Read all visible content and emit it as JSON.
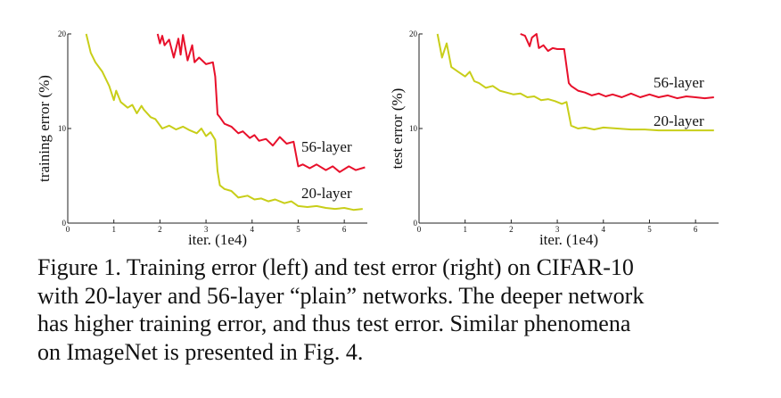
{
  "chart_data": [
    {
      "type": "line",
      "ylabel": "training error (%)",
      "xlabel": "iter. (1e4)",
      "xlim": [
        0,
        6.5
      ],
      "ylim": [
        0,
        20
      ],
      "x_ticks": [
        "0",
        "1",
        "2",
        "3",
        "4",
        "5",
        "6"
      ],
      "y_ticks": [
        "0",
        "10",
        "20"
      ],
      "grid": false,
      "series": [
        {
          "name": "56-layer",
          "color": "#e8102b",
          "x": [
            1.95,
            2.0,
            2.05,
            2.1,
            2.2,
            2.3,
            2.4,
            2.45,
            2.5,
            2.6,
            2.7,
            2.75,
            2.85,
            3.0,
            3.15,
            3.2,
            3.25,
            3.3,
            3.4,
            3.55,
            3.7,
            3.8,
            3.95,
            4.05,
            4.15,
            4.3,
            4.45,
            4.6,
            4.75,
            4.9,
            5.0,
            5.1,
            5.25,
            5.4,
            5.6,
            5.75,
            5.9,
            6.1,
            6.25,
            6.45
          ],
          "y": [
            20,
            19.0,
            19.8,
            18.8,
            19.4,
            17.5,
            19.5,
            17.8,
            19.9,
            17.2,
            18.8,
            17.0,
            17.5,
            16.8,
            17.0,
            15.5,
            11.5,
            11.2,
            10.5,
            10.2,
            9.5,
            9.7,
            9.0,
            9.3,
            8.7,
            8.9,
            8.2,
            9.1,
            8.4,
            8.6,
            6.0,
            6.2,
            5.8,
            6.2,
            5.6,
            6.0,
            5.4,
            6.0,
            5.6,
            5.9
          ]
        },
        {
          "name": "20-layer",
          "color": "#c8ce19",
          "x": [
            0.4,
            0.5,
            0.6,
            0.75,
            0.9,
            1.0,
            1.05,
            1.15,
            1.3,
            1.4,
            1.5,
            1.6,
            1.65,
            1.8,
            1.9,
            2.05,
            2.2,
            2.35,
            2.5,
            2.65,
            2.8,
            2.9,
            3.0,
            3.1,
            3.2,
            3.25,
            3.3,
            3.4,
            3.55,
            3.7,
            3.9,
            4.05,
            4.2,
            4.35,
            4.5,
            4.7,
            4.85,
            5.0,
            5.2,
            5.4,
            5.6,
            5.8,
            6.0,
            6.2,
            6.4
          ],
          "y": [
            20,
            18.0,
            17.0,
            16.0,
            14.5,
            13.0,
            14.0,
            12.8,
            12.2,
            12.5,
            11.6,
            12.4,
            12.0,
            11.2,
            11.0,
            10.0,
            10.3,
            9.9,
            10.2,
            9.8,
            9.5,
            10.0,
            9.2,
            9.6,
            8.8,
            5.5,
            4.0,
            3.6,
            3.4,
            2.7,
            2.9,
            2.5,
            2.6,
            2.3,
            2.5,
            2.1,
            2.3,
            1.8,
            1.7,
            1.8,
            1.6,
            1.5,
            1.6,
            1.4,
            1.5
          ]
        }
      ]
    },
    {
      "type": "line",
      "ylabel": "test error (%)",
      "xlabel": "iter. (1e4)",
      "xlim": [
        0,
        6.5
      ],
      "ylim": [
        0,
        20
      ],
      "x_ticks": [
        "0",
        "1",
        "2",
        "3",
        "4",
        "5",
        "6"
      ],
      "y_ticks": [
        "0",
        "10",
        "20"
      ],
      "grid": false,
      "series": [
        {
          "name": "56-layer",
          "color": "#e8102b",
          "x": [
            2.2,
            2.3,
            2.4,
            2.45,
            2.55,
            2.6,
            2.7,
            2.8,
            2.9,
            3.0,
            3.15,
            3.25,
            3.3,
            3.45,
            3.6,
            3.75,
            3.9,
            4.05,
            4.2,
            4.4,
            4.6,
            4.8,
            5.0,
            5.2,
            5.4,
            5.6,
            5.8,
            6.0,
            6.2,
            6.4
          ],
          "y": [
            20,
            19.8,
            18.7,
            19.6,
            20,
            18.5,
            18.8,
            18.2,
            18.5,
            18.4,
            18.4,
            14.8,
            14.5,
            14.0,
            13.8,
            13.5,
            13.7,
            13.4,
            13.6,
            13.3,
            13.7,
            13.3,
            13.6,
            13.3,
            13.5,
            13.2,
            13.4,
            13.3,
            13.2,
            13.3
          ]
        },
        {
          "name": "20-layer",
          "color": "#c8ce19",
          "x": [
            0.4,
            0.5,
            0.6,
            0.7,
            0.85,
            1.0,
            1.1,
            1.2,
            1.3,
            1.45,
            1.6,
            1.75,
            1.9,
            2.05,
            2.2,
            2.35,
            2.5,
            2.65,
            2.8,
            2.95,
            3.1,
            3.2,
            3.3,
            3.45,
            3.6,
            3.8,
            4.0,
            4.3,
            4.6,
            4.9,
            5.2,
            5.5,
            5.8,
            6.1,
            6.4
          ],
          "y": [
            20,
            17.5,
            19.0,
            16.5,
            16.0,
            15.5,
            16.0,
            15.0,
            14.8,
            14.3,
            14.5,
            14.0,
            13.8,
            13.6,
            13.7,
            13.3,
            13.4,
            13.0,
            13.1,
            12.9,
            12.6,
            12.8,
            10.3,
            10.0,
            10.1,
            9.9,
            10.1,
            10.0,
            9.9,
            9.9,
            9.8,
            9.8,
            9.8,
            9.8,
            9.8
          ]
        }
      ]
    }
  ],
  "caption": {
    "lines": [
      "Figure 1. Training error (left) and test error (right) on CIFAR-10",
      "with 20-layer and 56-layer “plain” networks. The deeper network",
      "has higher training error, and thus test error.  Similar phenomena",
      "on ImageNet is presented in Fig. 4."
    ]
  }
}
